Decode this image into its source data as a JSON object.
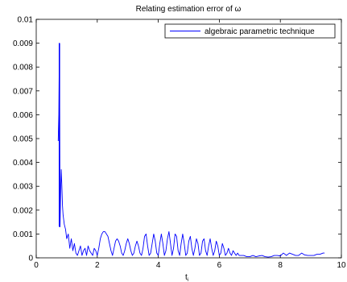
{
  "chart_data": {
    "type": "line",
    "title": "Relating estimation error of ω",
    "xlabel": "t",
    "xlabel_subscript": "i",
    "ylabel": "",
    "xlim": [
      0,
      10
    ],
    "ylim": [
      0,
      0.01
    ],
    "xticks": [
      0,
      2,
      4,
      6,
      8,
      10
    ],
    "yticks": [
      0,
      0.001,
      0.002,
      0.003,
      0.004,
      0.005,
      0.006,
      0.007,
      0.008,
      0.009,
      0.01
    ],
    "xtick_labels": [
      "0",
      "2",
      "4",
      "6",
      "8",
      "10"
    ],
    "ytick_labels": [
      "0",
      "0.001",
      "0.002",
      "0.003",
      "0.004",
      "0.005",
      "0.006",
      "0.007",
      "0.008",
      "0.009",
      "0.01"
    ],
    "grid": false,
    "legend_position": "top-right",
    "colors": {
      "series": "#0000ff",
      "axes": "#000000"
    },
    "series": [
      {
        "name": "algebraic parametric technique",
        "x": [
          0.72,
          0.74,
          0.76,
          0.78,
          0.8,
          0.82,
          0.84,
          0.86,
          0.88,
          0.92,
          0.96,
          1.0,
          1.05,
          1.1,
          1.15,
          1.2,
          1.25,
          1.3,
          1.35,
          1.4,
          1.45,
          1.5,
          1.55,
          1.6,
          1.65,
          1.7,
          1.75,
          1.8,
          1.85,
          1.9,
          1.95,
          2.0,
          2.05,
          2.1,
          2.15,
          2.2,
          2.25,
          2.3,
          2.35,
          2.4,
          2.45,
          2.5,
          2.55,
          2.6,
          2.65,
          2.7,
          2.75,
          2.8,
          2.85,
          2.9,
          2.95,
          3.0,
          3.05,
          3.1,
          3.15,
          3.2,
          3.25,
          3.3,
          3.35,
          3.4,
          3.45,
          3.5,
          3.55,
          3.6,
          3.65,
          3.7,
          3.75,
          3.8,
          3.85,
          3.9,
          3.95,
          4.0,
          4.05,
          4.1,
          4.15,
          4.2,
          4.25,
          4.3,
          4.35,
          4.4,
          4.45,
          4.5,
          4.55,
          4.6,
          4.65,
          4.7,
          4.75,
          4.8,
          4.85,
          4.9,
          4.95,
          5.0,
          5.05,
          5.1,
          5.15,
          5.2,
          5.25,
          5.3,
          5.35,
          5.4,
          5.45,
          5.5,
          5.55,
          5.6,
          5.65,
          5.7,
          5.75,
          5.8,
          5.85,
          5.9,
          5.95,
          6.0,
          6.05,
          6.1,
          6.15,
          6.2,
          6.25,
          6.3,
          6.35,
          6.4,
          6.45,
          6.5,
          6.55,
          6.6,
          6.65,
          6.7,
          6.8,
          6.9,
          7.0,
          7.1,
          7.2,
          7.3,
          7.4,
          7.5,
          7.6,
          7.7,
          7.8,
          7.9,
          8.0,
          8.1,
          8.2,
          8.3,
          8.4,
          8.5,
          8.6,
          8.7,
          8.8,
          8.9,
          9.0,
          9.1,
          9.2,
          9.3,
          9.4,
          9.45
        ],
        "y": [
          0.0049,
          0.006,
          0.009,
          0.0013,
          0.0028,
          0.0037,
          0.003,
          0.0022,
          0.0018,
          0.0014,
          0.0012,
          0.0008,
          0.001,
          0.0004,
          0.0008,
          0.0003,
          0.0006,
          0.0002,
          0.0001,
          0.0003,
          0.0005,
          0.0001,
          0.0003,
          0.0004,
          0.0001,
          0.0005,
          0.0003,
          0.0002,
          0.0001,
          0.0004,
          0.0003,
          0.0001,
          0.0004,
          0.0008,
          0.001,
          0.0011,
          0.0011,
          0.001,
          0.0009,
          0.0006,
          0.0003,
          0.0001,
          0.0004,
          0.0007,
          0.0008,
          0.0007,
          0.0005,
          0.0002,
          0.0001,
          0.0003,
          0.0006,
          0.0008,
          0.0006,
          0.0003,
          0.0001,
          0.0002,
          0.0005,
          0.0007,
          0.0005,
          0.0002,
          0.0001,
          0.0004,
          0.0009,
          0.001,
          0.0005,
          0.0001,
          0.0002,
          0.0006,
          0.001,
          0.0007,
          0.0002,
          0.0001,
          0.0006,
          0.001,
          0.0006,
          0.0001,
          0.0003,
          0.0008,
          0.0011,
          0.0006,
          0.0001,
          0.0004,
          0.001,
          0.0009,
          0.0003,
          0.0001,
          0.0006,
          0.001,
          0.0006,
          0.0001,
          0.0002,
          0.0007,
          0.0009,
          0.0004,
          0.0001,
          0.0004,
          0.0008,
          0.0006,
          0.0001,
          0.0002,
          0.0007,
          0.0008,
          0.0003,
          0.0001,
          0.0005,
          0.0008,
          0.0004,
          0.0001,
          0.0003,
          0.0007,
          0.0005,
          0.0001,
          0.0002,
          0.0006,
          0.0004,
          0.0001,
          0.0002,
          0.0004,
          0.0002,
          0.0001,
          0.0003,
          0.0002,
          0.0001,
          0.0002,
          0.0001,
          0.0001,
          0.0001,
          5e-05,
          5e-05,
          0.0001,
          5e-05,
          8e-05,
          0.0001,
          5e-05,
          3e-05,
          5e-05,
          0.0001,
          0.0001,
          8e-05,
          0.0002,
          0.0001,
          0.0002,
          0.00015,
          0.0001,
          0.0001,
          0.0002,
          0.00012,
          0.0001,
          0.0001,
          0.0001,
          0.00015,
          0.00015,
          0.0002,
          0.0002
        ]
      }
    ]
  }
}
